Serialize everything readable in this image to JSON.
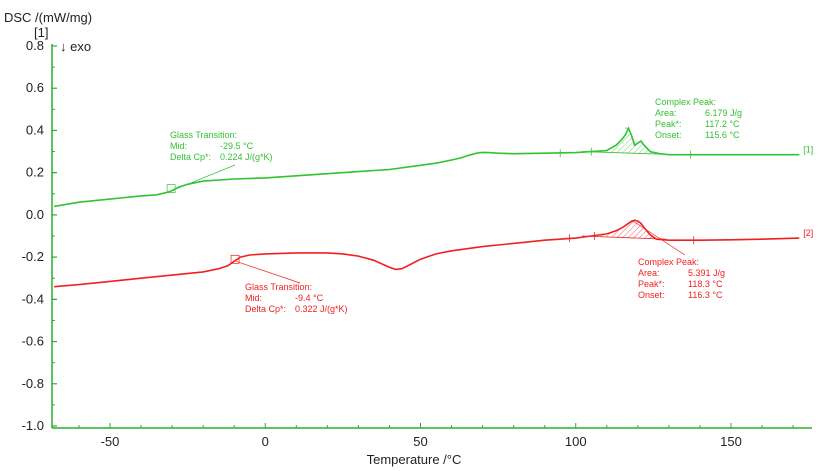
{
  "chart_data": {
    "type": "line",
    "ylabel": "DSC /(mW/mg)",
    "xlabel": "Temperature /°C",
    "y_marker": "[1]",
    "exo_label": "↓ exo",
    "xlim": [
      -70,
      175
    ],
    "ylim": [
      -1.05,
      0.85
    ],
    "xticks": [
      -50,
      0,
      50,
      100,
      150
    ],
    "xtick_labels": [
      "-50",
      "0",
      "50",
      "100",
      "150"
    ],
    "yticks": [
      0.8,
      0.6,
      0.4,
      0.2,
      0.0,
      -0.2,
      -0.4,
      -0.6,
      -0.8,
      -1.0
    ],
    "ytick_labels": [
      "0.8",
      "0.6",
      "0.4",
      "0.2",
      "0.0",
      "-0.2",
      "-0.4",
      "-0.6",
      "-0.8",
      "-1.0"
    ],
    "axis_color": "#2ab02a",
    "series": [
      {
        "name": "[1]",
        "color": "#33c233",
        "x": [
          -68,
          -60,
          -50,
          -40,
          -35,
          -32,
          -30,
          -28,
          -25,
          -20,
          -10,
          0,
          10,
          20,
          30,
          40,
          50,
          55,
          60,
          63,
          65,
          68,
          70,
          72,
          75,
          80,
          90,
          100,
          105,
          110,
          113,
          115,
          116,
          117,
          118,
          119,
          120,
          121,
          122,
          124,
          127,
          130,
          140,
          150,
          160,
          172
        ],
        "y": [
          0.04,
          0.06,
          0.075,
          0.09,
          0.095,
          0.105,
          0.115,
          0.13,
          0.145,
          0.16,
          0.17,
          0.175,
          0.185,
          0.195,
          0.205,
          0.215,
          0.235,
          0.245,
          0.26,
          0.27,
          0.28,
          0.292,
          0.296,
          0.295,
          0.292,
          0.29,
          0.292,
          0.295,
          0.3,
          0.305,
          0.33,
          0.36,
          0.38,
          0.41,
          0.375,
          0.33,
          0.34,
          0.35,
          0.33,
          0.3,
          0.29,
          0.285,
          0.285,
          0.285,
          0.285,
          0.285
        ]
      },
      {
        "name": "[2]",
        "color": "#f02020",
        "x": [
          -68,
          -60,
          -50,
          -40,
          -30,
          -20,
          -15,
          -12,
          -10,
          -8,
          -5,
          0,
          10,
          20,
          25,
          30,
          35,
          38,
          40,
          42,
          44,
          46,
          50,
          55,
          60,
          70,
          80,
          90,
          100,
          105,
          110,
          113,
          115,
          117,
          118,
          119,
          120,
          121,
          122,
          124,
          126,
          130,
          140,
          150,
          160,
          172
        ],
        "y": [
          -0.34,
          -0.33,
          -0.315,
          -0.3,
          -0.285,
          -0.27,
          -0.255,
          -0.24,
          -0.22,
          -0.2,
          -0.19,
          -0.185,
          -0.18,
          -0.18,
          -0.185,
          -0.195,
          -0.215,
          -0.235,
          -0.248,
          -0.258,
          -0.255,
          -0.24,
          -0.21,
          -0.185,
          -0.17,
          -0.15,
          -0.135,
          -0.12,
          -0.11,
          -0.1,
          -0.09,
          -0.075,
          -0.06,
          -0.04,
          -0.03,
          -0.025,
          -0.03,
          -0.04,
          -0.06,
          -0.095,
          -0.115,
          -0.12,
          -0.12,
          -0.118,
          -0.115,
          -0.11
        ]
      }
    ],
    "curve_labels": [
      "[1]",
      "[2]"
    ],
    "annotations": {
      "gt1": {
        "lines": [
          "Glass Transition:",
          "Mid:",
          "Delta Cp*:"
        ],
        "values": [
          "",
          "-29.5 °C",
          "0.224 J/(g*K)"
        ],
        "at_x": -30,
        "at_y": 0.115
      },
      "cp1": {
        "lines": [
          "Complex Peak:",
          "Area:",
          "Peak*:",
          "Onset:"
        ],
        "values": [
          "",
          "6.179 J/g",
          "117.2 °C",
          "115.6 °C"
        ],
        "at_x": 117,
        "at_y": 0.41
      },
      "gt2": {
        "lines": [
          "Glass Transition:",
          "Mid:",
          "Delta Cp*:"
        ],
        "values": [
          "",
          "-9.4 °C",
          "0.322 J/(g*K)"
        ],
        "at_x": -9.4,
        "at_y": -0.22
      },
      "cp2": {
        "lines": [
          "Complex Peak:",
          "Area:",
          "Peak*:",
          "Onset:"
        ],
        "values": [
          "",
          "5.391 J/g",
          "118.3 °C",
          "116.3 °C"
        ],
        "at_x": 118,
        "at_y": -0.025
      }
    }
  }
}
